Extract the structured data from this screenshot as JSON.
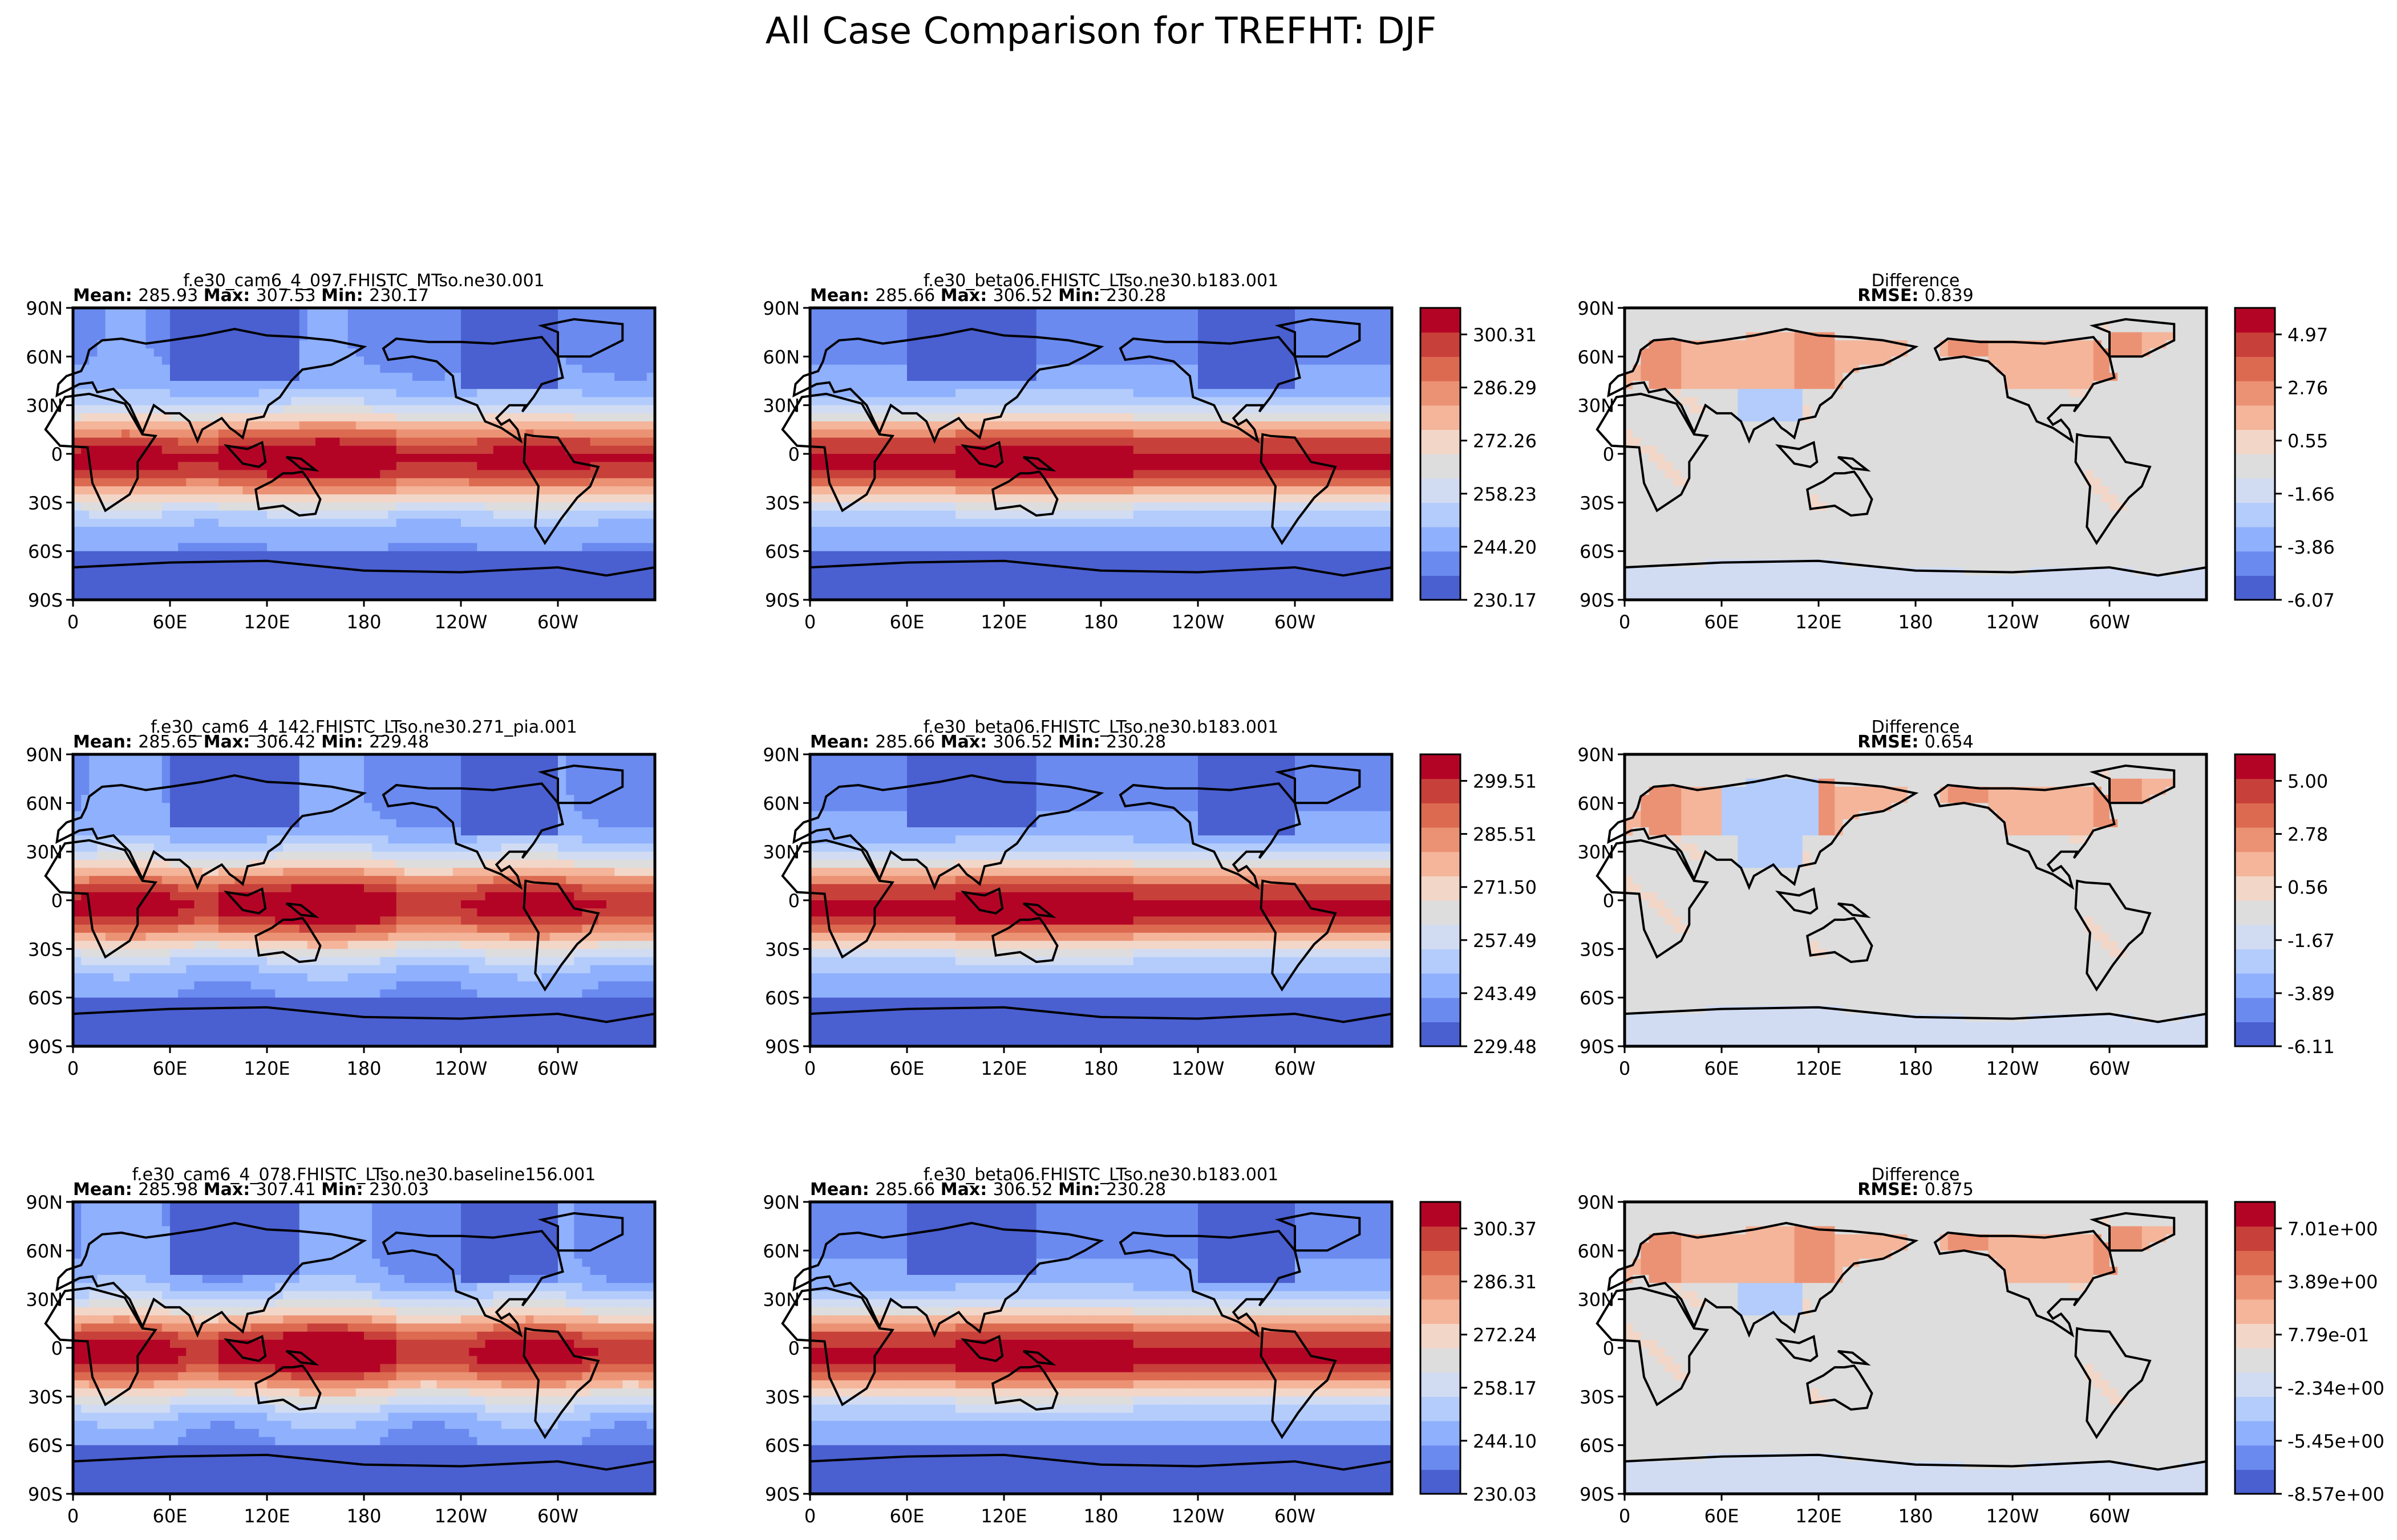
{
  "figure": {
    "title": "All Case Comparison for TREFHT: DJF"
  },
  "colors": {
    "scale": [
      "#4a5fd0",
      "#6a8af0",
      "#8fb0fd",
      "#b3ccfb",
      "#d1dcf3",
      "#dddddd",
      "#f2d6c8",
      "#f4b59a",
      "#ec9274",
      "#dc6a50",
      "#c8403a",
      "#b40426"
    ],
    "land": "#000000",
    "diff_zero": "#dddddd"
  },
  "axes": {
    "lat_ticks": [
      "90N",
      "60N",
      "30N",
      "0",
      "30S",
      "60S",
      "90S"
    ],
    "lon_ticks": [
      "0",
      "60E",
      "120E",
      "180",
      "120W",
      "60W"
    ]
  },
  "stat_labels": {
    "mean": "Mean:",
    "max": "Max:",
    "min": "Min:",
    "rmse": "RMSE:"
  },
  "chart_data": [
    {
      "type": "heatmap",
      "row": 1,
      "test": {
        "title": "f.e30_cam6_4_097.FHISTC_MTso.ne30.001",
        "mean": "285.93",
        "max": "307.53",
        "min": "230.17"
      },
      "ref": {
        "title": "f.e30_beta06.FHISTC_LTso.ne30.b183.001",
        "mean": "285.66",
        "max": "306.52",
        "min": "230.28"
      },
      "field_colorbar": [
        "230.17",
        "244.20",
        "258.23",
        "272.26",
        "286.29",
        "300.31"
      ],
      "diff": {
        "title": "Difference",
        "rmse": "0.839",
        "colorbar": [
          "-6.07",
          "-3.86",
          "-1.66",
          "0.55",
          "2.76",
          "4.97"
        ]
      }
    },
    {
      "type": "heatmap",
      "row": 2,
      "test": {
        "title": "f.e30_cam6_4_142.FHISTC_LTso.ne30.271_pia.001",
        "mean": "285.65",
        "max": "306.42",
        "min": "229.48"
      },
      "ref": {
        "title": "f.e30_beta06.FHISTC_LTso.ne30.b183.001",
        "mean": "285.66",
        "max": "306.52",
        "min": "230.28"
      },
      "field_colorbar": [
        "229.48",
        "243.49",
        "257.49",
        "271.50",
        "285.51",
        "299.51"
      ],
      "diff": {
        "title": "Difference",
        "rmse": "0.654",
        "colorbar": [
          "-6.11",
          "-3.89",
          "-1.67",
          "0.56",
          "2.78",
          "5.00"
        ]
      }
    },
    {
      "type": "heatmap",
      "row": 3,
      "test": {
        "title": "f.e30_cam6_4_078.FHISTC_LTso.ne30.baseline156.001",
        "mean": "285.98",
        "max": "307.41",
        "min": "230.03"
      },
      "ref": {
        "title": "f.e30_beta06.FHISTC_LTso.ne30.b183.001",
        "mean": "285.66",
        "max": "306.52",
        "min": "230.28"
      },
      "field_colorbar": [
        "230.03",
        "244.10",
        "258.17",
        "272.24",
        "286.31",
        "300.37"
      ],
      "diff": {
        "title": "Difference",
        "rmse": "0.875",
        "colorbar": [
          "-8.57e+00",
          "-5.45e+00",
          "-2.34e+00",
          "7.79e-01",
          "3.89e+00",
          "7.01e+00"
        ]
      }
    }
  ]
}
